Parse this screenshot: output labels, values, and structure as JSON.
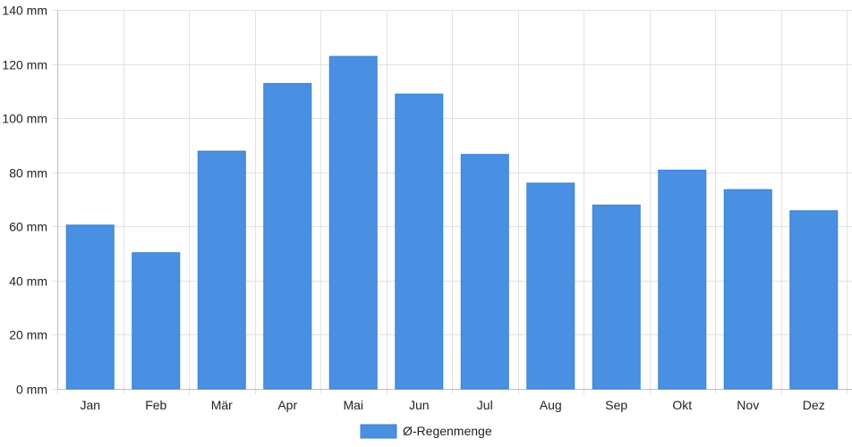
{
  "chart_data": {
    "type": "bar",
    "categories": [
      "Jan",
      "Feb",
      "Mär",
      "Apr",
      "Mai",
      "Jun",
      "Jul",
      "Aug",
      "Sep",
      "Okt",
      "Nov",
      "Dez"
    ],
    "series": [
      {
        "name": "Ø-Regenmenge",
        "values": [
          60.5,
          50.3,
          87.8,
          112.8,
          122.8,
          108.9,
          86.6,
          76.0,
          67.9,
          80.8,
          73.6,
          65.8
        ],
        "color": "#4a90e2"
      }
    ],
    "ylim": [
      0,
      140
    ],
    "y_ticks": [
      0,
      20,
      40,
      60,
      80,
      100,
      120,
      140
    ],
    "y_unit": "mm",
    "grid": true,
    "legend_position": "bottom"
  }
}
